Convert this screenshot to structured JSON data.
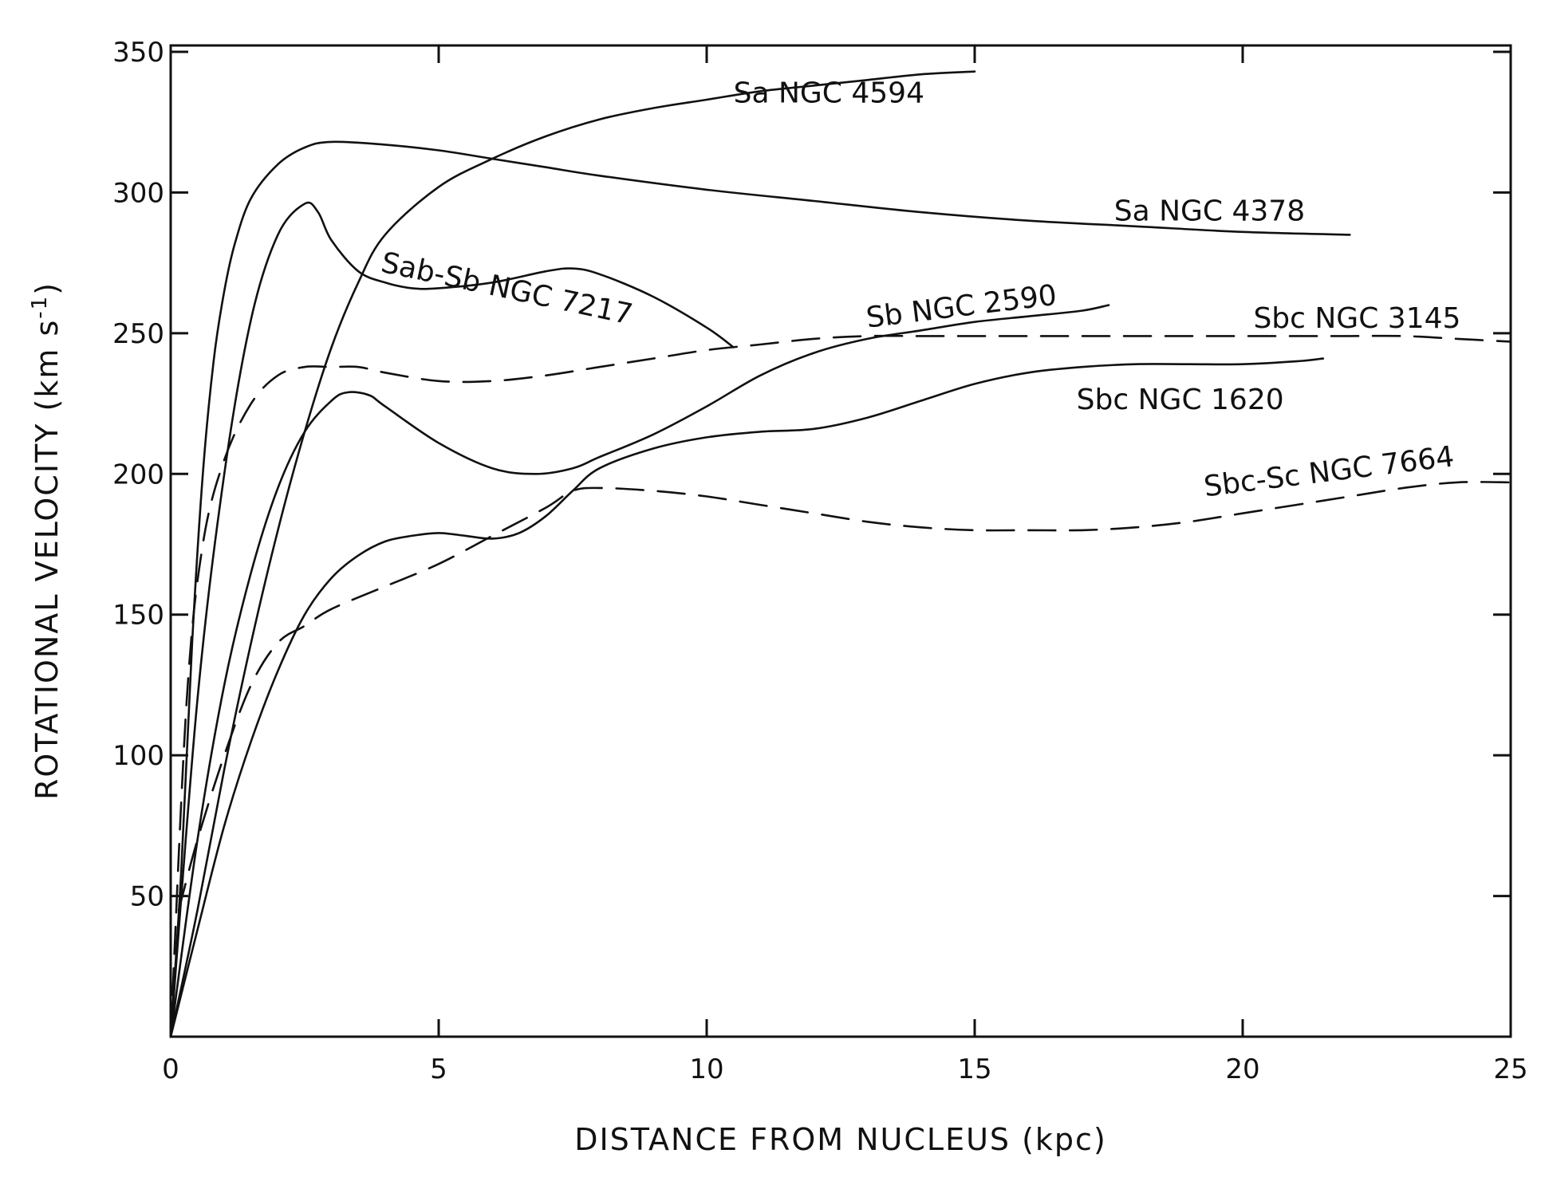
{
  "chart_data": {
    "type": "line",
    "title": "",
    "xlabel": "DISTANCE FROM NUCLEUS (kpc)",
    "ylabel": "ROTATIONAL VELOCITY (km s",
    "ylabel_sup": "-1",
    "ylabel_close": ")",
    "xlim": [
      0,
      25
    ],
    "ylim": [
      0,
      360
    ],
    "xticks": [
      0,
      5,
      10,
      15,
      20,
      25
    ],
    "xtick_labels": [
      "0",
      "5",
      "10",
      "15",
      "20",
      "25"
    ],
    "yticks": [
      50,
      100,
      150,
      200,
      250,
      300,
      350
    ],
    "ytick_labels": [
      "50",
      "100",
      "150",
      "200",
      "250",
      "300",
      "350"
    ],
    "grid": false,
    "legend": "none",
    "series": [
      {
        "name": "Sa NGC 4594",
        "style": "solid",
        "x": [
          0,
          0.5,
          1,
          1.5,
          2,
          2.5,
          3,
          3.5,
          4,
          5,
          6,
          7,
          8,
          9,
          10,
          11,
          12,
          13,
          14,
          15
        ],
        "y": [
          0,
          45,
          95,
          140,
          180,
          215,
          245,
          268,
          285,
          302,
          312,
          320,
          326,
          330,
          333,
          336,
          338,
          340,
          342,
          343
        ]
      },
      {
        "name": "Sa NGC 4378",
        "style": "solid",
        "x": [
          0,
          0.2,
          0.4,
          0.6,
          0.8,
          1,
          1.2,
          1.5,
          2,
          2.5,
          3,
          4,
          5,
          6,
          7,
          8,
          10,
          12,
          14,
          16,
          18,
          20,
          22
        ],
        "y": [
          0,
          60,
          140,
          200,
          240,
          265,
          282,
          298,
          310,
          316,
          318,
          317,
          315,
          312,
          309,
          306,
          301,
          297,
          293,
          290,
          288,
          286,
          285
        ]
      },
      {
        "name": "Sab-Sb NGC 7217",
        "style": "solid",
        "x": [
          0,
          0.5,
          1,
          1.5,
          2,
          2.5,
          2.75,
          3,
          3.5,
          4,
          4.5,
          5,
          6,
          7,
          7.5,
          8,
          9,
          10,
          10.5
        ],
        "y": [
          0,
          120,
          200,
          255,
          285,
          296,
          293,
          283,
          272,
          268,
          266,
          266,
          268,
          272,
          273,
          271,
          263,
          252,
          245
        ]
      },
      {
        "name": "Sb NGC 2590",
        "style": "solid",
        "x": [
          0,
          0.5,
          1,
          1.5,
          2,
          2.5,
          3,
          3.3,
          3.7,
          4,
          5,
          6,
          6.8,
          7.5,
          8,
          9,
          10,
          11,
          12,
          13,
          14,
          15,
          16,
          17,
          17.5
        ],
        "y": [
          0,
          70,
          125,
          165,
          195,
          215,
          226,
          229,
          228,
          224,
          211,
          202,
          200,
          202,
          206,
          214,
          224,
          235,
          243,
          248,
          251,
          254,
          256,
          258,
          260
        ]
      },
      {
        "name": "Sbc NGC 1620",
        "style": "solid",
        "x": [
          0,
          0.5,
          1,
          1.5,
          2,
          2.5,
          3,
          3.5,
          4,
          4.5,
          5,
          5.5,
          6,
          6.5,
          7,
          7.5,
          8,
          9,
          10,
          11,
          12,
          13,
          14,
          15,
          16,
          17,
          18,
          19,
          20,
          21,
          21.5
        ],
        "y": [
          0,
          38,
          75,
          105,
          130,
          150,
          163,
          171,
          176,
          178,
          179,
          178,
          177,
          179,
          185,
          194,
          202,
          209,
          213,
          215,
          216,
          220,
          226,
          232,
          236,
          238,
          239,
          239,
          239,
          240,
          241
        ]
      },
      {
        "name": "Sbc NGC 3145",
        "style": "dashed",
        "x": [
          0,
          0.3,
          0.6,
          1,
          1.5,
          2,
          2.5,
          3,
          3.5,
          4,
          5,
          6,
          7,
          8,
          9,
          10,
          11,
          12,
          13,
          14,
          15,
          16,
          17,
          18,
          19,
          20,
          21,
          22,
          23,
          24,
          25
        ],
        "y": [
          0,
          120,
          175,
          205,
          225,
          235,
          238,
          238,
          238,
          236,
          233,
          233,
          235,
          238,
          241,
          244,
          246,
          248,
          249,
          249,
          249,
          249,
          249,
          249,
          249,
          249,
          249,
          249,
          249,
          248,
          247
        ]
      },
      {
        "name": "Sbc-Sc NGC 7664",
        "style": "dashed",
        "x": [
          0.15,
          0.5,
          1,
          1.5,
          2,
          2.5,
          3,
          4,
          5,
          6,
          7,
          7.5,
          8,
          9,
          10,
          11,
          12,
          13,
          14,
          15,
          16,
          17,
          18,
          19,
          20,
          21,
          22,
          23,
          24,
          25
        ],
        "y": [
          45,
          70,
          100,
          125,
          140,
          146,
          152,
          160,
          168,
          178,
          188,
          194,
          195,
          194,
          192,
          189,
          186,
          183,
          181,
          180,
          180,
          180,
          181,
          183,
          186,
          189,
          192,
          195,
          197,
          197
        ]
      }
    ],
    "annotations": [
      {
        "text": "Sa  NGC 4594",
        "x": 10.5,
        "y": 332
      },
      {
        "text": "Sa  NGC 4378",
        "x": 17.6,
        "y": 290
      },
      {
        "text": "Sab-Sb  NGC 7217",
        "x": 3.9,
        "y": 272,
        "rotate": 12
      },
      {
        "text": "Sb  NGC 2590",
        "x": 13.0,
        "y": 252,
        "rotate": -7
      },
      {
        "text": "Sbc  NGC 3145",
        "x": 20.2,
        "y": 252
      },
      {
        "text": "Sbc  NGC 1620",
        "x": 16.9,
        "y": 223
      },
      {
        "text": "Sbc-Sc NGC 7664",
        "x": 19.3,
        "y": 192,
        "rotate": -7
      }
    ]
  }
}
